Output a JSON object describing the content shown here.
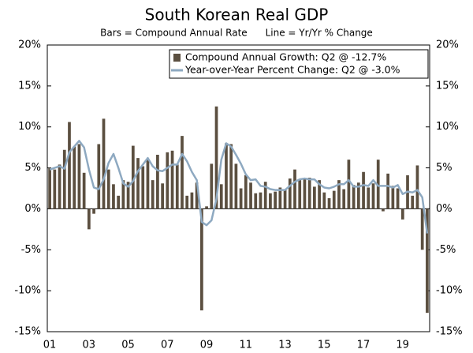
{
  "chart_data": {
    "type": "combo",
    "title": "South Korean Real GDP",
    "subtitle": "Bars = Compound Annual Rate      Line = Yr/Yr % Change",
    "categories": [
      "01",
      null,
      null,
      null,
      null,
      null,
      null,
      null,
      "03",
      null,
      null,
      null,
      null,
      null,
      null,
      null,
      "05",
      null,
      null,
      null,
      null,
      null,
      null,
      null,
      "07",
      null,
      null,
      null,
      null,
      null,
      null,
      null,
      "09",
      null,
      null,
      null,
      null,
      null,
      null,
      null,
      "11",
      null,
      null,
      null,
      null,
      null,
      null,
      null,
      "13",
      null,
      null,
      null,
      null,
      null,
      null,
      null,
      "15",
      null,
      null,
      null,
      null,
      null,
      null,
      null,
      "17",
      null,
      null,
      null,
      null,
      null,
      null,
      null,
      "19",
      null,
      null,
      null,
      null,
      null
    ],
    "series": [
      {
        "name": "Compound Annual Growth: Q2 @ -12.7%",
        "type": "bar",
        "color": "#5b4f40",
        "values": [
          5.0,
          4.8,
          5.4,
          7.2,
          10.6,
          7.6,
          7.9,
          4.4,
          -2.5,
          -0.6,
          7.9,
          11.0,
          4.8,
          3.0,
          1.6,
          3.5,
          3.3,
          7.7,
          6.2,
          5.2,
          6.1,
          3.5,
          6.6,
          3.1,
          6.9,
          7.1,
          5.4,
          8.9,
          1.6,
          2.0,
          3.2,
          -12.4,
          0.3,
          5.5,
          12.5,
          3.0,
          8.0,
          7.9,
          5.5,
          2.5,
          4.1,
          3.2,
          1.9,
          2.0,
          3.3,
          1.9,
          2.1,
          2.6,
          2.4,
          3.7,
          4.8,
          3.5,
          3.7,
          3.8,
          2.7,
          3.5,
          2.0,
          1.3,
          2.2,
          3.5,
          2.4,
          6.0,
          2.9,
          3.2,
          4.5,
          2.6,
          3.1,
          6.0,
          -0.3,
          4.3,
          2.8,
          2.5,
          -1.3,
          4.1,
          1.6,
          5.3,
          -5.0,
          -12.7
        ]
      },
      {
        "name": "Year-over-Year Percent Change: Q2 @ -3.0%",
        "type": "line",
        "color": "#8ea9c1",
        "values": [
          4.8,
          5.0,
          5.2,
          4.9,
          6.9,
          7.6,
          8.3,
          7.5,
          4.8,
          2.6,
          2.4,
          3.6,
          5.6,
          6.7,
          5.0,
          3.1,
          2.7,
          3.4,
          4.6,
          5.4,
          6.2,
          5.2,
          4.7,
          4.6,
          5.0,
          5.4,
          5.4,
          6.7,
          5.8,
          4.5,
          3.5,
          -1.6,
          -2.0,
          -1.4,
          1.2,
          6.0,
          8.0,
          7.6,
          6.6,
          5.5,
          4.2,
          3.5,
          3.6,
          2.8,
          2.7,
          2.4,
          2.3,
          2.3,
          2.3,
          2.8,
          3.3,
          3.6,
          3.7,
          3.6,
          3.6,
          3.0,
          2.6,
          2.5,
          2.7,
          3.0,
          3.0,
          3.5,
          2.7,
          2.7,
          2.9,
          2.8,
          3.5,
          2.8,
          2.8,
          2.8,
          2.6,
          2.9,
          1.8,
          2.1,
          2.0,
          2.3,
          1.4,
          -3.0
        ]
      }
    ],
    "ylim": [
      -15,
      20
    ],
    "yticks": [
      {
        "value": -15,
        "label": "-15%"
      },
      {
        "value": -10,
        "label": "-10%"
      },
      {
        "value": -5,
        "label": "-5%"
      },
      {
        "value": 0,
        "label": "0%"
      },
      {
        "value": 5,
        "label": "5%"
      },
      {
        "value": 10,
        "label": "10%"
      },
      {
        "value": 15,
        "label": "15%"
      },
      {
        "value": 20,
        "label": "20%"
      }
    ],
    "y2lim": [
      -15,
      20
    ],
    "y2ticks": [
      {
        "value": -15,
        "label": "-15%"
      },
      {
        "value": -10,
        "label": "-10%"
      },
      {
        "value": -5,
        "label": "-5%"
      },
      {
        "value": 0,
        "label": "0%"
      },
      {
        "value": 5,
        "label": "5%"
      },
      {
        "value": 10,
        "label": "10%"
      },
      {
        "value": 15,
        "label": "15%"
      },
      {
        "value": 20,
        "label": "20%"
      }
    ],
    "grid": false,
    "legend": "top-right"
  }
}
